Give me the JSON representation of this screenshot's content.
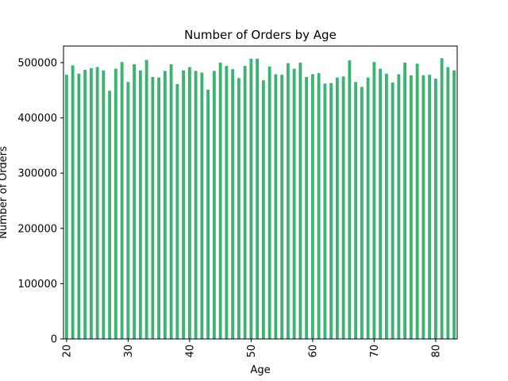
{
  "chart_data": {
    "type": "bar",
    "title": "Number of Orders by Age",
    "xlabel": "Age",
    "ylabel": "Number of Orders",
    "bar_color": "#3cb371",
    "ylim": [
      0,
      530000
    ],
    "yticks": [
      0,
      100000,
      200000,
      300000,
      400000,
      500000
    ],
    "xtick_labels": [
      "20",
      "30",
      "40",
      "50",
      "60",
      "70",
      "80"
    ],
    "grid": false,
    "legend": "none",
    "categories": [
      20,
      21,
      22,
      23,
      24,
      25,
      26,
      27,
      28,
      29,
      30,
      31,
      32,
      33,
      34,
      35,
      36,
      37,
      38,
      39,
      40,
      41,
      42,
      43,
      44,
      45,
      46,
      47,
      48,
      49,
      50,
      51,
      52,
      53,
      54,
      55,
      56,
      57,
      58,
      59,
      60,
      61,
      62,
      63,
      64,
      65,
      66,
      67,
      68,
      69,
      70,
      71,
      72,
      73,
      74,
      75,
      76,
      77,
      78,
      79,
      80,
      81,
      82,
      83
    ],
    "values": [
      478000,
      495000,
      480000,
      487000,
      490000,
      492000,
      486000,
      449000,
      489000,
      501000,
      465000,
      497000,
      486000,
      505000,
      474000,
      473000,
      485000,
      497000,
      461000,
      486000,
      492000,
      485000,
      482000,
      451000,
      485000,
      500000,
      494000,
      488000,
      472000,
      494000,
      507000,
      507000,
      468000,
      493000,
      479000,
      478000,
      499000,
      489000,
      500000,
      474000,
      479000,
      481000,
      462000,
      463000,
      473000,
      475000,
      504000,
      465000,
      456000,
      473000,
      501000,
      489000,
      480000,
      464000,
      479000,
      500000,
      477000,
      498000,
      477000,
      478000,
      471000,
      508000,
      492000,
      486000
    ]
  }
}
